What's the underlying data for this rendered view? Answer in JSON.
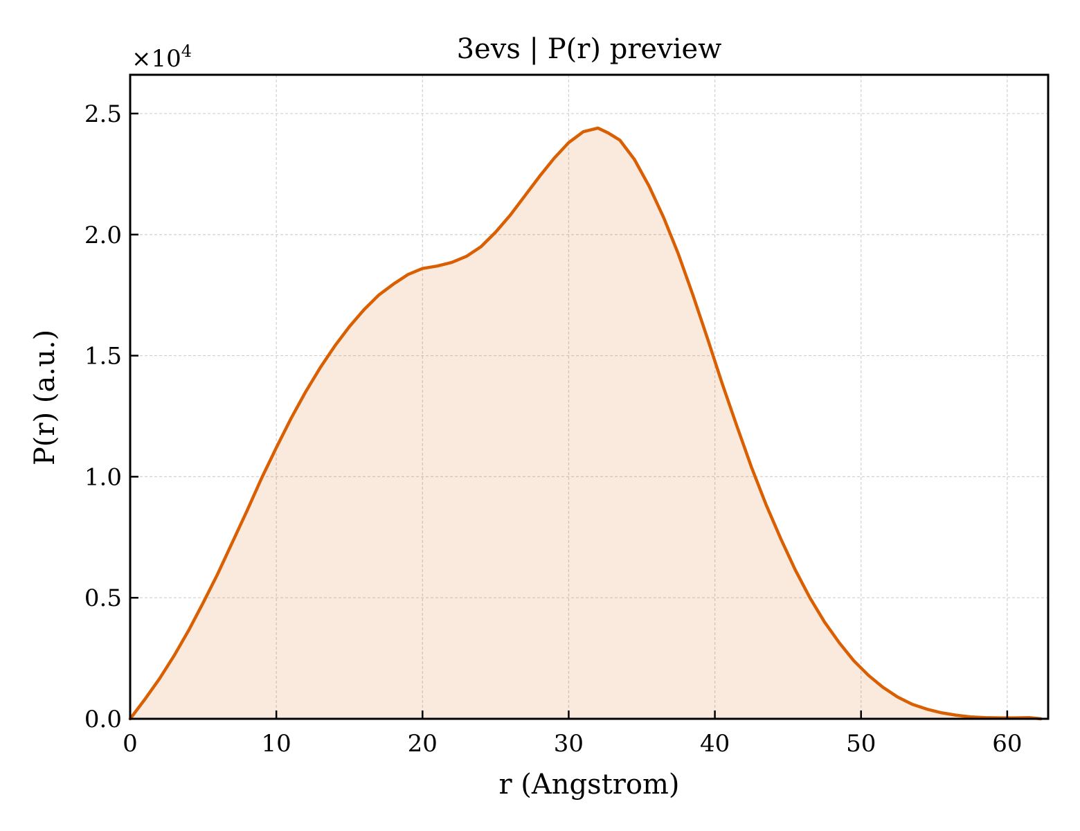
{
  "chart_data": {
    "type": "area",
    "title": "3evs | P(r) preview",
    "xlabel": "r (Angstrom)",
    "ylabel": "P(r) (a.u.)",
    "y_scale_label": "×10",
    "y_scale_exponent": "4",
    "xlim": [
      0,
      62.8
    ],
    "ylim": [
      0,
      26600
    ],
    "xticks": [
      0,
      10,
      20,
      30,
      40,
      50,
      60
    ],
    "xtick_labels": [
      "0",
      "10",
      "20",
      "30",
      "40",
      "50",
      "60"
    ],
    "yticks": [
      0,
      5000,
      10000,
      15000,
      20000,
      25000
    ],
    "ytick_labels": [
      "0.0",
      "0.5",
      "1.0",
      "1.5",
      "2.0",
      "2.5"
    ],
    "grid": true,
    "legend": "none",
    "line_color": "#d95f02",
    "fill_color": "#d95f02",
    "series": [
      {
        "x": [
          0,
          1,
          2,
          3,
          4,
          5,
          6,
          7,
          8,
          9,
          10,
          11,
          12,
          13,
          14,
          15,
          16,
          17,
          18,
          19,
          20,
          21,
          22,
          23,
          24,
          25,
          26,
          27,
          28,
          29,
          30,
          31,
          32,
          32.7,
          33.5,
          34.5,
          35.5,
          36.5,
          37.5,
          38.5,
          39.5,
          40.5,
          41.5,
          42.5,
          43.5,
          44.5,
          45.5,
          46.5,
          47.5,
          48.5,
          49.5,
          50.5,
          51.5,
          52.5,
          53.5,
          54.5,
          55.5,
          56.5,
          57.5,
          58.5,
          59.5,
          60.5,
          61.5,
          62.3
        ],
        "y": [
          0,
          800,
          1650,
          2600,
          3650,
          4800,
          6000,
          7300,
          8600,
          9950,
          11200,
          12400,
          13500,
          14500,
          15400,
          16200,
          16900,
          17500,
          17950,
          18350,
          18600,
          18700,
          18850,
          19100,
          19500,
          20100,
          20800,
          21600,
          22400,
          23150,
          23800,
          24250,
          24400,
          24200,
          23900,
          23100,
          22000,
          20700,
          19200,
          17500,
          15700,
          13850,
          12100,
          10400,
          8850,
          7450,
          6150,
          5000,
          4000,
          3150,
          2400,
          1800,
          1300,
          900,
          600,
          400,
          250,
          150,
          80,
          50,
          40,
          40,
          50,
          0
        ]
      }
    ]
  }
}
